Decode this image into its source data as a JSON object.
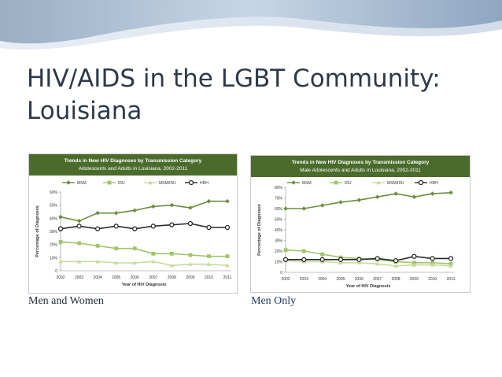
{
  "slide": {
    "title_line1": "HIV/AIDS in the LGBT Community:",
    "title_line2": "Louisiana"
  },
  "captions": {
    "left": "Men and Women",
    "right": "Men Only"
  },
  "colors": {
    "header_green": "#4b6b2d",
    "msm": "#6b8e3d",
    "idu": "#a2c46a",
    "msm_idu": "#c7db9e",
    "hrh": "#2a2a2a"
  },
  "chart_data": [
    {
      "type": "line",
      "title": "Trends in New HIV Diagnoses by Transmission Category",
      "subtitle": "Adolescents and Adults in Louisiana, 2002-2011",
      "xlabel": "Year of HIV Diagnosis",
      "ylabel": "Percentage of Diagnoses",
      "ylim": [
        0,
        60
      ],
      "yticks": [
        "0",
        "10%",
        "20%",
        "30%",
        "40%",
        "50%",
        "60%"
      ],
      "legend_position": "top",
      "x": [
        "2002",
        "2003",
        "2004",
        "2005",
        "2006",
        "2007",
        "2008",
        "2009",
        "2010",
        "2011"
      ],
      "series": [
        {
          "name": "MSM",
          "marker": "diamond",
          "values": [
            41,
            38,
            44,
            44,
            46,
            49,
            50,
            48,
            53,
            53
          ]
        },
        {
          "name": "IDU",
          "marker": "square",
          "values": [
            22,
            21,
            19,
            17,
            17,
            13,
            13,
            12,
            11,
            11
          ]
        },
        {
          "name": "MSM/IDU",
          "marker": "triangle",
          "values": [
            7,
            7,
            7,
            6,
            6,
            7,
            4,
            5,
            5,
            4
          ]
        },
        {
          "name": "HRH",
          "marker": "circle",
          "values": [
            32,
            34,
            32,
            34,
            32,
            34,
            35,
            36,
            33,
            33
          ]
        }
      ]
    },
    {
      "type": "line",
      "title": "Trends in New HIV Diagnoses by Transmission Category",
      "subtitle": "Male Adolescents and Adults in Louisiana, 2002-2011",
      "xlabel": "Year of HIV Diagnosis",
      "ylabel": "Percentage of Diagnoses",
      "ylim": [
        0,
        80
      ],
      "yticks": [
        "0",
        "10%",
        "20%",
        "30%",
        "40%",
        "50%",
        "60%",
        "70%",
        "80%"
      ],
      "legend_position": "top",
      "x": [
        "2002",
        "2003",
        "2004",
        "2005",
        "2006",
        "2007",
        "2008",
        "2009",
        "2010",
        "2011"
      ],
      "series": [
        {
          "name": "MSM",
          "marker": "diamond",
          "values": [
            60,
            60,
            63,
            66,
            68,
            71,
            74,
            71,
            74,
            75
          ]
        },
        {
          "name": "IDU",
          "marker": "square",
          "values": [
            21,
            20,
            17,
            14,
            13,
            12,
            10,
            9,
            9,
            8
          ]
        },
        {
          "name": "MSM/IDU",
          "marker": "triangle",
          "values": [
            11,
            10,
            10,
            9,
            9,
            8,
            6,
            7,
            7,
            6
          ]
        },
        {
          "name": "HRH",
          "marker": "circle",
          "values": [
            12,
            12,
            12,
            12,
            12,
            13,
            11,
            15,
            13,
            13
          ]
        }
      ]
    }
  ]
}
